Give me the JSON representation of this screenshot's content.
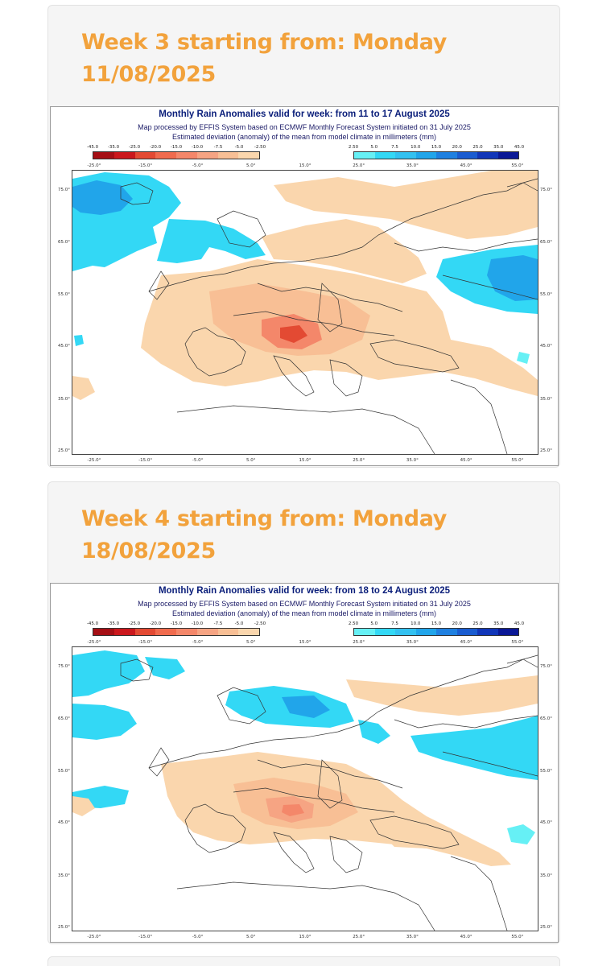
{
  "colors": {
    "title_orange": "#f2a23c",
    "card_bg": "#f5f5f5",
    "map_title": "#0a1e7a",
    "negative_scale": [
      "#a50f15",
      "#cb181d",
      "#e34a33",
      "#f06b4e",
      "#f4876a",
      "#f6a483",
      "#f8bf95",
      "#fad6ad"
    ],
    "positive_scale": [
      "#66f0f5",
      "#33d8f5",
      "#33c1f0",
      "#21a5ea",
      "#1f80e0",
      "#1a5cd0",
      "#1136b8",
      "#0a1896"
    ]
  },
  "weeks": [
    {
      "heading": "Week 3 starting from: Monday 11/08/2025",
      "map": {
        "title": "Monthly Rain Anomalies valid for week: from 11 to 17 August 2025",
        "subtitle1": "Map processed by EFFIS System based on ECMWF Monthly Forecast System initiated on 31 July 2025",
        "subtitle2": "Estimated deviation (anomaly) of the mean from model climate in millimeters (mm)"
      }
    },
    {
      "heading": "Week 4 starting from: Monday 18/08/2025",
      "map": {
        "title": "Monthly Rain Anomalies valid for week: from 18 to 24 August 2025",
        "subtitle1": "Map processed by EFFIS System based on ECMWF Monthly Forecast System initiated on 31 July 2025",
        "subtitle2": "Estimated deviation (anomaly) of the mean from model climate in millimeters (mm)"
      }
    }
  ],
  "legend": {
    "negative_ticks": [
      "-45.0",
      "-35.0",
      "-25.0",
      "-20.0",
      "-15.0",
      "-10.0",
      "-7.5",
      "-5.0",
      "-2.50"
    ],
    "positive_ticks": [
      "2.50",
      "5.0",
      "7.5",
      "10.0",
      "15.0",
      "20.0",
      "25.0",
      "35.0",
      "45.0"
    ]
  },
  "axes": {
    "x_ticks": [
      "-25.0°",
      "-15.0°",
      "-5.0°",
      "5.0°",
      "15.0°",
      "25.0°",
      "35.0°",
      "45.0°",
      "55.0°"
    ],
    "y_ticks": [
      "75.0°",
      "65.0°",
      "55.0°",
      "45.0°",
      "35.0°",
      "25.0°"
    ]
  }
}
